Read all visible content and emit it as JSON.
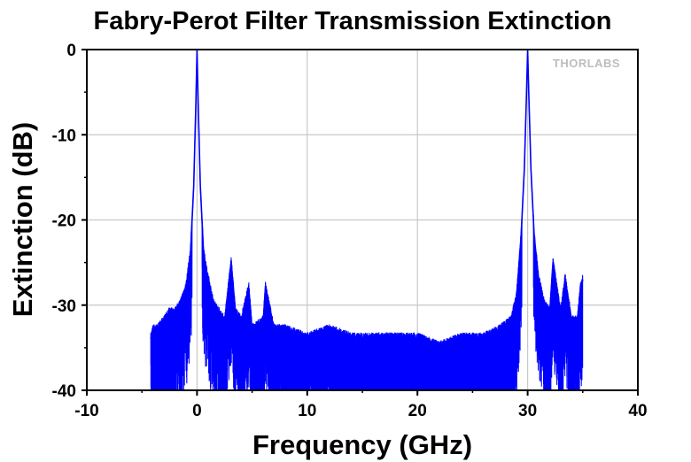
{
  "chart_data": {
    "type": "line",
    "title": "Fabry-Perot Filter Transmission Extinction",
    "xlabel": "Frequency (GHz)",
    "ylabel": "Extinction (dB)",
    "xlim": [
      -10,
      40
    ],
    "ylim": [
      -40,
      0
    ],
    "xticks": [
      -10,
      0,
      10,
      20,
      30,
      40
    ],
    "yticks": [
      0,
      -10,
      -20,
      -30,
      -40
    ],
    "grid": true,
    "legend": "none",
    "watermark": "THORLABS",
    "series": [
      {
        "color": "#0000ff",
        "x": [
          -4.2,
          -4.0,
          -3.6,
          -3.0,
          -2.5,
          -2.0,
          -1.5,
          -1.0,
          -0.6,
          -0.3,
          -0.1,
          0.0,
          0.1,
          0.3,
          0.6,
          1.0,
          1.5,
          2.0,
          2.5,
          3.1,
          3.5,
          4.0,
          4.7,
          5.0,
          6.0,
          6.2,
          7.0,
          8.0,
          10.0,
          12.0,
          14.0,
          16.0,
          18.0,
          20.0,
          22.0,
          24.0,
          26.0,
          27.5,
          28.5,
          29.0,
          29.4,
          29.7,
          29.9,
          30.0,
          30.1,
          30.3,
          30.6,
          31.0,
          31.5,
          32.0,
          32.3,
          33.0,
          33.4,
          34.0,
          34.5,
          34.8,
          35.0
        ],
        "y": [
          -34,
          -33,
          -33,
          -32,
          -31,
          -31,
          -30,
          -28,
          -24,
          -16,
          -6,
          0,
          -6,
          -16,
          -24,
          -27,
          -30,
          -31,
          -32,
          -25,
          -31,
          -32,
          -28,
          -33,
          -32,
          -28,
          -33,
          -33,
          -34,
          -33,
          -34,
          -34,
          -34,
          -34,
          -35,
          -34,
          -34,
          -33,
          -32,
          -29,
          -22,
          -14,
          -5,
          0,
          -5,
          -14,
          -22,
          -27,
          -30,
          -31,
          -25,
          -31,
          -27,
          -32,
          -32,
          -28,
          -27
        ]
      }
    ]
  }
}
